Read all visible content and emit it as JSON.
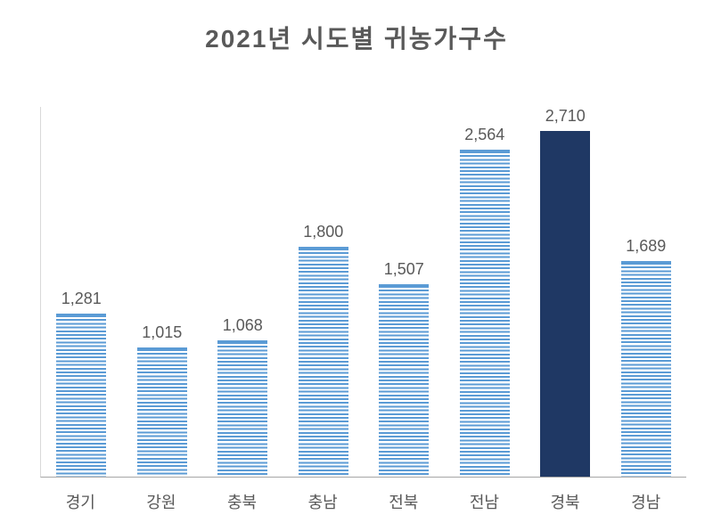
{
  "chart": {
    "type": "bar",
    "title": "2021년 시도별 귀농가구수",
    "title_fontsize": 28,
    "title_color": "#595959",
    "categories": [
      "경기",
      "강원",
      "충북",
      "충남",
      "전북",
      "전남",
      "경북",
      "경남"
    ],
    "values": [
      1281,
      1015,
      1068,
      1800,
      1507,
      2564,
      2710,
      1689
    ],
    "value_labels": [
      "1,281",
      "1,015",
      "1,068",
      "1,800",
      "1,507",
      "2,564",
      "2,710",
      "1,689"
    ],
    "bar_styles": [
      "striped",
      "striped",
      "striped",
      "striped",
      "striped",
      "striped",
      "solid",
      "striped"
    ],
    "stripe_color": "#5b9bd5",
    "solid_color": "#1f3864",
    "background_color": "#ffffff",
    "axis_color": "#a6a6a6",
    "label_color": "#595959",
    "value_fontsize": 18,
    "xlabel_fontsize": 18,
    "y_max": 2900,
    "bar_width_ratio": 0.62
  }
}
